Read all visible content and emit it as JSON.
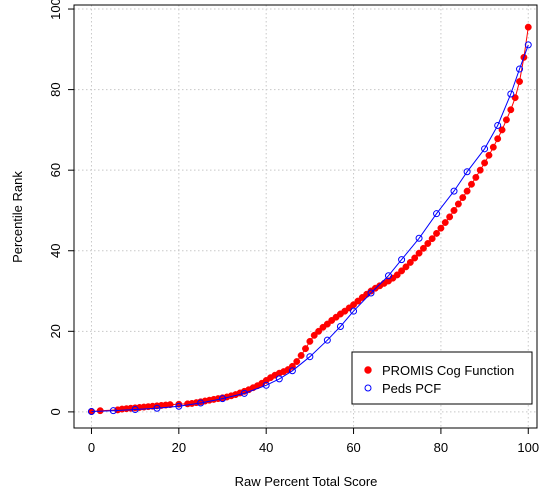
{
  "chart_data": {
    "type": "line",
    "xlabel": "Raw Percent Total Score",
    "ylabel": "Percentile Rank",
    "xlim": [
      -4,
      102
    ],
    "ylim": [
      -4,
      101
    ],
    "xticks": [
      0,
      20,
      40,
      60,
      80,
      100
    ],
    "yticks": [
      0,
      20,
      40,
      60,
      80,
      100
    ],
    "x_tick_labels": [
      "0",
      "20",
      "40",
      "60",
      "80",
      "100"
    ],
    "y_tick_labels": [
      "0",
      "20",
      "40",
      "60",
      "80",
      "100"
    ],
    "grid": true,
    "legend_position": "bottom-right",
    "series": [
      {
        "name": "PROMIS Cog Function",
        "color": "#ff0000",
        "marker": "filled-circle",
        "x": [
          0,
          2,
          6,
          7,
          8,
          9,
          10,
          11,
          12,
          13,
          14,
          15,
          16,
          17,
          18,
          20,
          22,
          23,
          24,
          25,
          26,
          27,
          28,
          29,
          30,
          31,
          32,
          33,
          34,
          35,
          36,
          37,
          38,
          39,
          40,
          41,
          42,
          43,
          44,
          45,
          46,
          47,
          48,
          49,
          50,
          51,
          52,
          53,
          54,
          55,
          56,
          57,
          58,
          59,
          60,
          61,
          62,
          63,
          64,
          65,
          66,
          67,
          68,
          69,
          70,
          71,
          72,
          73,
          74,
          75,
          76,
          77,
          78,
          79,
          80,
          81,
          82,
          83,
          84,
          85,
          86,
          87,
          88,
          89,
          90,
          91,
          92,
          93,
          94,
          95,
          96,
          97,
          98,
          99,
          100
        ],
        "y": [
          0.1,
          0.3,
          0.5,
          0.7,
          0.8,
          0.9,
          1.0,
          1.1,
          1.2,
          1.3,
          1.4,
          1.5,
          1.6,
          1.7,
          1.8,
          1.9,
          2.0,
          2.1,
          2.3,
          2.5,
          2.7,
          2.9,
          3.1,
          3.3,
          3.5,
          3.7,
          4.0,
          4.3,
          4.7,
          5.1,
          5.5,
          6.0,
          6.5,
          7.1,
          7.8,
          8.5,
          9.1,
          9.6,
          10.0,
          10.5,
          11.3,
          12.5,
          14.0,
          15.7,
          17.5,
          19.0,
          20.0,
          21.0,
          21.8,
          22.7,
          23.5,
          24.3,
          25.0,
          25.8,
          26.6,
          27.5,
          28.4,
          29.2,
          30.0,
          30.7,
          31.3,
          31.9,
          32.5,
          33.2,
          34.0,
          35.0,
          36.0,
          37.1,
          38.2,
          39.4,
          40.6,
          41.8,
          43.0,
          44.3,
          45.6,
          47.0,
          48.4,
          50.0,
          51.6,
          53.2,
          54.8,
          56.5,
          58.2,
          60.0,
          61.8,
          63.7,
          65.7,
          67.8,
          70.0,
          72.5,
          75.0,
          78.0,
          82.0,
          88.0,
          95.5
        ]
      },
      {
        "name": "Peds PCF",
        "color": "#0000ff",
        "marker": "open-circle",
        "x": [
          0,
          5,
          10,
          15,
          20,
          25,
          30,
          35,
          40,
          43,
          46,
          50,
          54,
          57,
          60,
          64,
          68,
          71,
          75,
          79,
          83,
          86,
          90,
          93,
          96,
          98,
          100
        ],
        "y": [
          0.1,
          0.3,
          0.6,
          0.9,
          1.4,
          2.2,
          3.3,
          4.6,
          6.6,
          8.2,
          10.2,
          13.7,
          17.8,
          21.2,
          25.0,
          29.5,
          33.8,
          37.8,
          43.1,
          49.2,
          54.8,
          59.6,
          65.3,
          71.1,
          78.9,
          85.1,
          91.1
        ]
      }
    ]
  }
}
